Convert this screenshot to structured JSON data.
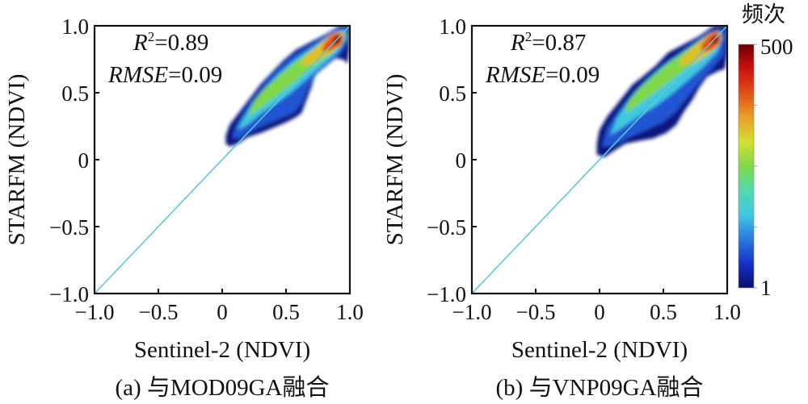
{
  "figure": {
    "colorbar": {
      "title": "频次",
      "min_label": "1",
      "max_label": "500",
      "min": 1,
      "max": 500,
      "scale": "log",
      "colormap": [
        "#0a0f6e",
        "#1530c8",
        "#2a78dc",
        "#40c8e0",
        "#55d8b0",
        "#80d848",
        "#d4e030",
        "#e8a028",
        "#e05018",
        "#cc1010",
        "#6a0000"
      ]
    },
    "regression_line_color": "#5bc8dc"
  },
  "chart_data": [
    {
      "type": "heatmap",
      "panel": "a",
      "caption": "(a) 与MOD09GA融合",
      "title": "",
      "xlabel": "Sentinel-2 (NDVI)",
      "ylabel": "STARFM (NDVI)",
      "xlim": [
        -1.0,
        1.0
      ],
      "ylim": [
        -1.0,
        1.0
      ],
      "xticks": [
        -1.0,
        -0.5,
        0,
        0.5,
        1.0
      ],
      "xtick_labels": [
        "−1.0",
        "−0.5",
        "0",
        "0.5",
        "1.0"
      ],
      "yticks": [
        -1.0,
        -0.5,
        0,
        0.5,
        1.0
      ],
      "ytick_labels": [
        "−1.0",
        "−0.5",
        "0",
        "0.5",
        "1.0"
      ],
      "grid": false,
      "annotations": {
        "r2_label": "R",
        "r2_sup": "2",
        "r2_value": "=0.89",
        "rmse_label": "RMSE",
        "rmse_value": "=0.09"
      },
      "r2": 0.89,
      "rmse": 0.09,
      "reference_line": {
        "x": [
          -1.0,
          1.0
        ],
        "y": [
          -1.0,
          1.0
        ]
      },
      "density_contours": [
        {
          "level": 0.02,
          "points": [
            [
              0.03,
              0.12
            ],
            [
              0.06,
              0.1
            ],
            [
              0.12,
              0.12
            ],
            [
              0.2,
              0.17
            ],
            [
              0.3,
              0.2
            ],
            [
              0.4,
              0.24
            ],
            [
              0.5,
              0.28
            ],
            [
              0.58,
              0.32
            ],
            [
              0.62,
              0.35
            ],
            [
              0.66,
              0.45
            ],
            [
              0.7,
              0.55
            ],
            [
              0.72,
              0.62
            ],
            [
              0.74,
              0.66
            ],
            [
              0.8,
              0.72
            ],
            [
              0.88,
              0.76
            ],
            [
              0.95,
              0.75
            ],
            [
              0.98,
              0.72
            ],
            [
              0.99,
              0.8
            ],
            [
              1.0,
              1.0
            ],
            [
              0.92,
              1.0
            ],
            [
              0.82,
              0.94
            ],
            [
              0.7,
              0.88
            ],
            [
              0.58,
              0.82
            ],
            [
              0.48,
              0.74
            ],
            [
              0.38,
              0.64
            ],
            [
              0.3,
              0.56
            ],
            [
              0.22,
              0.46
            ],
            [
              0.14,
              0.36
            ],
            [
              0.06,
              0.26
            ],
            [
              0.03,
              0.18
            ]
          ]
        },
        {
          "level": 0.15,
          "points": [
            [
              0.08,
              0.16
            ],
            [
              0.14,
              0.16
            ],
            [
              0.24,
              0.22
            ],
            [
              0.36,
              0.27
            ],
            [
              0.46,
              0.31
            ],
            [
              0.56,
              0.35
            ],
            [
              0.62,
              0.42
            ],
            [
              0.68,
              0.55
            ],
            [
              0.74,
              0.64
            ],
            [
              0.84,
              0.72
            ],
            [
              0.94,
              0.8
            ],
            [
              0.98,
              0.9
            ],
            [
              0.98,
              0.98
            ],
            [
              0.9,
              0.98
            ],
            [
              0.8,
              0.92
            ],
            [
              0.68,
              0.85
            ],
            [
              0.56,
              0.78
            ],
            [
              0.46,
              0.7
            ],
            [
              0.36,
              0.6
            ],
            [
              0.26,
              0.48
            ],
            [
              0.16,
              0.34
            ],
            [
              0.1,
              0.24
            ]
          ]
        },
        {
          "level": 0.3,
          "points": [
            [
              0.12,
              0.22
            ],
            [
              0.2,
              0.26
            ],
            [
              0.3,
              0.34
            ],
            [
              0.42,
              0.42
            ],
            [
              0.54,
              0.5
            ],
            [
              0.66,
              0.6
            ],
            [
              0.78,
              0.7
            ],
            [
              0.9,
              0.8
            ],
            [
              0.97,
              0.9
            ],
            [
              0.97,
              0.97
            ],
            [
              0.9,
              0.96
            ],
            [
              0.8,
              0.9
            ],
            [
              0.68,
              0.82
            ],
            [
              0.56,
              0.74
            ],
            [
              0.44,
              0.64
            ],
            [
              0.34,
              0.54
            ],
            [
              0.24,
              0.42
            ],
            [
              0.16,
              0.3
            ]
          ]
        },
        {
          "level": 0.5,
          "points": [
            [
              0.2,
              0.32
            ],
            [
              0.32,
              0.4
            ],
            [
              0.46,
              0.5
            ],
            [
              0.6,
              0.6
            ],
            [
              0.72,
              0.7
            ],
            [
              0.84,
              0.78
            ],
            [
              0.94,
              0.86
            ],
            [
              0.96,
              0.95
            ],
            [
              0.9,
              0.94
            ],
            [
              0.8,
              0.88
            ],
            [
              0.68,
              0.8
            ],
            [
              0.56,
              0.72
            ],
            [
              0.44,
              0.62
            ],
            [
              0.32,
              0.52
            ],
            [
              0.24,
              0.42
            ]
          ]
        },
        {
          "level": 0.65,
          "points": [
            [
              0.6,
              0.7
            ],
            [
              0.72,
              0.72
            ],
            [
              0.82,
              0.78
            ],
            [
              0.92,
              0.84
            ],
            [
              0.96,
              0.92
            ],
            [
              0.94,
              0.96
            ],
            [
              0.86,
              0.94
            ],
            [
              0.76,
              0.86
            ],
            [
              0.66,
              0.78
            ]
          ]
        },
        {
          "level": 0.8,
          "points": [
            [
              0.78,
              0.8
            ],
            [
              0.86,
              0.82
            ],
            [
              0.93,
              0.86
            ],
            [
              0.95,
              0.92
            ],
            [
              0.92,
              0.95
            ],
            [
              0.86,
              0.93
            ],
            [
              0.8,
              0.87
            ]
          ]
        },
        {
          "level": 0.95,
          "points": [
            [
              0.87,
              0.86
            ],
            [
              0.92,
              0.87
            ],
            [
              0.94,
              0.91
            ],
            [
              0.92,
              0.93
            ],
            [
              0.88,
              0.92
            ]
          ]
        }
      ]
    },
    {
      "type": "heatmap",
      "panel": "b",
      "caption": "(b) 与VNP09GA融合",
      "title": "",
      "xlabel": "Sentinel-2 (NDVI)",
      "ylabel": "STARFM (NDVI)",
      "xlim": [
        -1.0,
        1.0
      ],
      "ylim": [
        -1.0,
        1.0
      ],
      "xticks": [
        -1.0,
        -0.5,
        0,
        0.5,
        1.0
      ],
      "xtick_labels": [
        "−1.0",
        "−0.5",
        "0",
        "0.5",
        "1.0"
      ],
      "yticks": [
        -1.0,
        -0.5,
        0,
        0.5,
        1.0
      ],
      "ytick_labels": [
        "−1.0",
        "−0.5",
        "0",
        "0.5",
        "1.0"
      ],
      "grid": false,
      "annotations": {
        "r2_label": "R",
        "r2_sup": "2",
        "r2_value": "=0.87",
        "rmse_label": "RMSE",
        "rmse_value": "=0.09"
      },
      "r2": 0.87,
      "rmse": 0.09,
      "reference_line": {
        "x": [
          -1.0,
          1.0
        ],
        "y": [
          -1.0,
          1.0
        ]
      },
      "density_contours": [
        {
          "level": 0.02,
          "points": [
            [
              -0.02,
              0.04
            ],
            [
              0.04,
              0.02
            ],
            [
              0.1,
              0.06
            ],
            [
              0.2,
              0.12
            ],
            [
              0.3,
              0.14
            ],
            [
              0.42,
              0.16
            ],
            [
              0.52,
              0.2
            ],
            [
              0.6,
              0.26
            ],
            [
              0.66,
              0.36
            ],
            [
              0.72,
              0.44
            ],
            [
              0.78,
              0.54
            ],
            [
              0.84,
              0.62
            ],
            [
              0.92,
              0.66
            ],
            [
              0.98,
              0.68
            ],
            [
              1.0,
              0.8
            ],
            [
              1.0,
              1.0
            ],
            [
              0.9,
              1.0
            ],
            [
              0.78,
              0.92
            ],
            [
              0.66,
              0.86
            ],
            [
              0.54,
              0.8
            ],
            [
              0.44,
              0.7
            ],
            [
              0.34,
              0.62
            ],
            [
              0.26,
              0.56
            ],
            [
              0.16,
              0.44
            ],
            [
              0.06,
              0.32
            ],
            [
              0.0,
              0.22
            ],
            [
              -0.02,
              0.12
            ]
          ]
        },
        {
          "level": 0.15,
          "points": [
            [
              0.02,
              0.1
            ],
            [
              0.1,
              0.1
            ],
            [
              0.22,
              0.16
            ],
            [
              0.36,
              0.22
            ],
            [
              0.5,
              0.28
            ],
            [
              0.6,
              0.36
            ],
            [
              0.7,
              0.48
            ],
            [
              0.8,
              0.6
            ],
            [
              0.9,
              0.7
            ],
            [
              0.97,
              0.78
            ],
            [
              0.98,
              0.96
            ],
            [
              0.9,
              0.97
            ],
            [
              0.78,
              0.9
            ],
            [
              0.66,
              0.82
            ],
            [
              0.54,
              0.74
            ],
            [
              0.42,
              0.64
            ],
            [
              0.3,
              0.54
            ],
            [
              0.18,
              0.4
            ],
            [
              0.06,
              0.24
            ]
          ]
        },
        {
          "level": 0.3,
          "points": [
            [
              0.08,
              0.18
            ],
            [
              0.18,
              0.24
            ],
            [
              0.3,
              0.32
            ],
            [
              0.44,
              0.4
            ],
            [
              0.58,
              0.5
            ],
            [
              0.7,
              0.6
            ],
            [
              0.82,
              0.7
            ],
            [
              0.92,
              0.8
            ],
            [
              0.96,
              0.9
            ],
            [
              0.95,
              0.96
            ],
            [
              0.86,
              0.94
            ],
            [
              0.74,
              0.86
            ],
            [
              0.62,
              0.78
            ],
            [
              0.5,
              0.7
            ],
            [
              0.38,
              0.6
            ],
            [
              0.26,
              0.48
            ],
            [
              0.14,
              0.32
            ]
          ]
        },
        {
          "level": 0.5,
          "points": [
            [
              0.2,
              0.34
            ],
            [
              0.32,
              0.42
            ],
            [
              0.46,
              0.52
            ],
            [
              0.6,
              0.62
            ],
            [
              0.72,
              0.7
            ],
            [
              0.84,
              0.78
            ],
            [
              0.94,
              0.86
            ],
            [
              0.95,
              0.94
            ],
            [
              0.88,
              0.94
            ],
            [
              0.78,
              0.88
            ],
            [
              0.66,
              0.8
            ],
            [
              0.54,
              0.72
            ],
            [
              0.42,
              0.62
            ],
            [
              0.3,
              0.52
            ],
            [
              0.22,
              0.42
            ]
          ]
        },
        {
          "level": 0.65,
          "points": [
            [
              0.62,
              0.7
            ],
            [
              0.74,
              0.72
            ],
            [
              0.84,
              0.78
            ],
            [
              0.92,
              0.84
            ],
            [
              0.96,
              0.92
            ],
            [
              0.93,
              0.96
            ],
            [
              0.86,
              0.94
            ],
            [
              0.76,
              0.86
            ],
            [
              0.66,
              0.78
            ]
          ]
        },
        {
          "level": 0.8,
          "points": [
            [
              0.8,
              0.8
            ],
            [
              0.88,
              0.82
            ],
            [
              0.94,
              0.87
            ],
            [
              0.95,
              0.93
            ],
            [
              0.91,
              0.95
            ],
            [
              0.85,
              0.92
            ],
            [
              0.8,
              0.86
            ]
          ]
        },
        {
          "level": 0.95,
          "points": [
            [
              0.88,
              0.86
            ],
            [
              0.93,
              0.88
            ],
            [
              0.94,
              0.92
            ],
            [
              0.91,
              0.93
            ],
            [
              0.88,
              0.91
            ]
          ]
        }
      ]
    }
  ]
}
